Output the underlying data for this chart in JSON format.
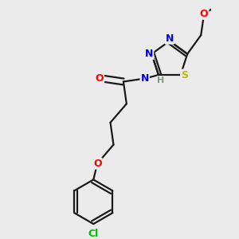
{
  "background_color": "#ebebeb",
  "atoms": {
    "Cl": {
      "color": "#00bb00"
    },
    "O": {
      "color": "#ff0000"
    },
    "N": {
      "color": "#0000ee"
    },
    "S": {
      "color": "#bbbb00"
    },
    "H": {
      "color": "#7a9a7a"
    },
    "C": {
      "color": "#1a1a1a"
    }
  },
  "bond_color": "#1a1a1a",
  "bond_width": 1.6
}
